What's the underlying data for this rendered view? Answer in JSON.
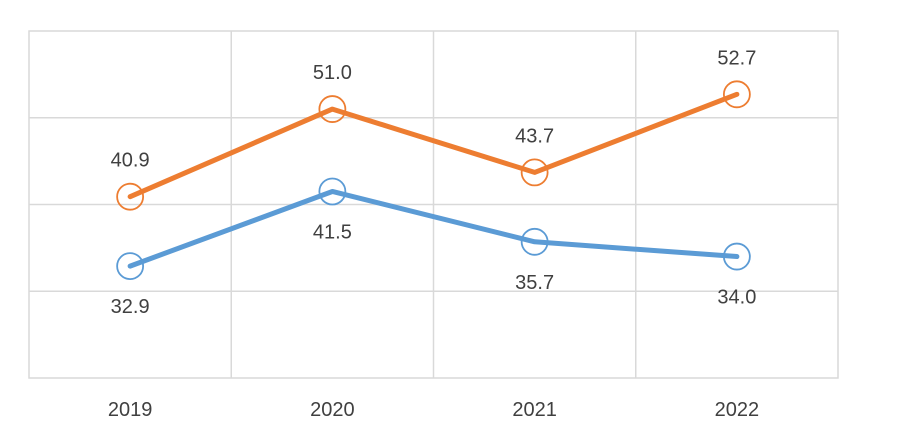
{
  "chart_data": {
    "type": "line",
    "title": "",
    "xlabel": "",
    "ylabel": "",
    "categories": [
      "2019",
      "2020",
      "2021",
      "2022"
    ],
    "ylim": [
      20,
      60
    ],
    "grid": true,
    "legend": "none",
    "series": [
      {
        "name": "",
        "color": "#ED7D31",
        "values": [
          40.9,
          51.0,
          43.7,
          52.7
        ],
        "labels": [
          "40.9",
          "51.0",
          "43.7",
          "52.7"
        ],
        "label_position": "above"
      },
      {
        "name": "",
        "color": "#5B9BD5",
        "values": [
          32.9,
          41.5,
          35.7,
          34.0
        ],
        "labels": [
          "32.9",
          "41.5",
          "35.7",
          "34.0"
        ],
        "label_position": "below"
      }
    ]
  }
}
